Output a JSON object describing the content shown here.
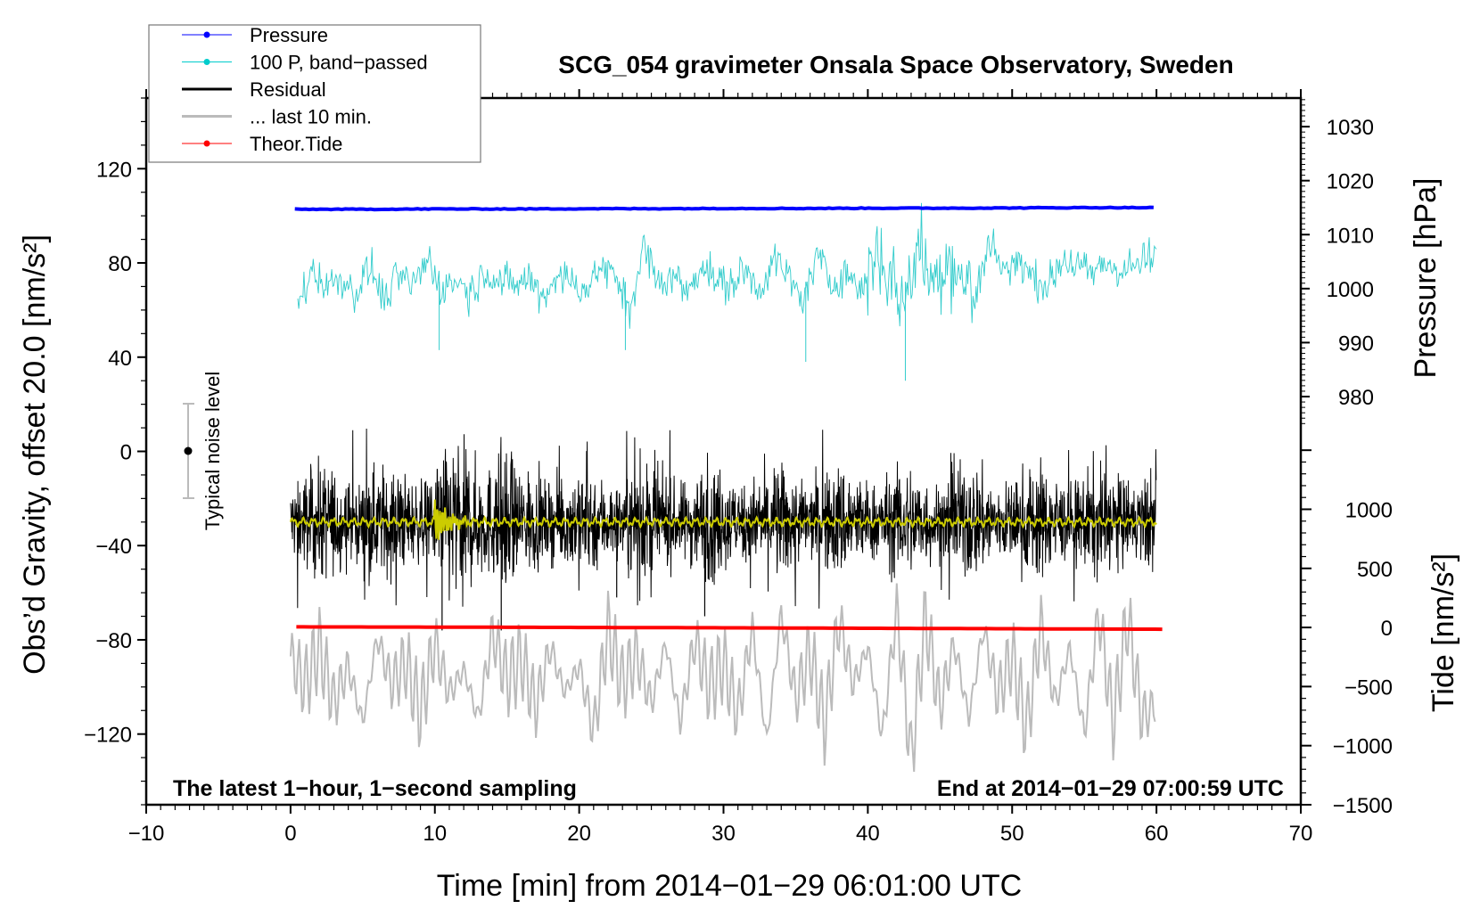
{
  "chart_data": {
    "type": "line",
    "title": "SCG_054 gravimeter Onsala Space Observatory, Sweden",
    "xlabel": "Time [min] from 2014−01−29 06:01:00 UTC",
    "ylabel_left": "Obs’d Gravity, offset 20.0 [nm/s²]",
    "ylabel_right_pressure": "Pressure [hPa]",
    "ylabel_right_tide": "Tide [nm/s²]",
    "xlim": [
      -10,
      70
    ],
    "ylim_left": [
      -150,
      150
    ],
    "ylim_pressure": [
      904.4,
      1035.3
    ],
    "ylim_tide": [
      -1500,
      4480
    ],
    "x_ticks": [
      "−10",
      "0",
      "10",
      "20",
      "30",
      "40",
      "50",
      "60",
      "70"
    ],
    "x_tick_values": [
      -10,
      0,
      10,
      20,
      30,
      40,
      50,
      60,
      70
    ],
    "y_left_ticks": [
      "120",
      "80",
      "40",
      "0",
      "−40",
      "−80",
      "−120"
    ],
    "y_left_tick_values": [
      120,
      80,
      40,
      0,
      -40,
      -80,
      -120
    ],
    "pressure_ticks": [
      "1030",
      "1020",
      "1010",
      "1000",
      "990",
      "980"
    ],
    "pressure_tick_values": [
      1030,
      1020,
      1010,
      1000,
      990,
      980
    ],
    "tide_ticks": [
      "1000",
      "500",
      "0",
      "−500",
      "−1000",
      "−1500"
    ],
    "tide_tick_values": [
      1000,
      500,
      0,
      -500,
      -1000,
      -1500
    ],
    "annotations": {
      "bottom_left": "The latest 1−hour, 1−second sampling",
      "bottom_right": "End at 2014−01−29 07:00:59 UTC",
      "noise_label": "Typical noise level",
      "noise_level": {
        "center": 0,
        "range": [
          -20,
          20
        ]
      }
    },
    "legend": {
      "placement": "top-left",
      "entries": [
        {
          "label": "Pressure",
          "color": "#0000ff",
          "marker": true
        },
        {
          "label": "100 P, band−passed",
          "color": "#00cccc",
          "marker": true
        },
        {
          "label": "Residual",
          "color": "#000000",
          "marker": false
        },
        {
          "label": "... last 10 min.",
          "color": "#bbbbbb",
          "marker": false
        },
        {
          "label": "Theor.Tide",
          "color": "#ff0000",
          "marker": true
        }
      ]
    },
    "series": [
      {
        "name": "Pressure",
        "axis": "pressure",
        "color": "#0000ff",
        "x_step_min": 5,
        "x_start": 0.3,
        "values": [
          1014.7,
          1014.7,
          1014.75,
          1014.75,
          1014.8,
          1014.8,
          1014.85,
          1014.85,
          1014.9,
          1014.9,
          1014.95,
          1015.0,
          1015.0
        ]
      },
      {
        "name": "100 P, band-passed",
        "axis": "left",
        "color": "#33cccc",
        "x_step_min": 1,
        "x_start": 0.5,
        "values": [
          60,
          78,
          70,
          74,
          66,
          80,
          62,
          75,
          70,
          84,
          68,
          73,
          66,
          78,
          72,
          70,
          74,
          64,
          76,
          72,
          68,
          80,
          74,
          58,
          90,
          70,
          76,
          66,
          82,
          72,
          70,
          78,
          68,
          84,
          74,
          62,
          86,
          70,
          78,
          66,
          88,
          76,
          60,
          92,
          70,
          86,
          74,
          64,
          94,
          78,
          82,
          74,
          70,
          84,
          80,
          76,
          82,
          78,
          80,
          84,
          86
        ]
      },
      {
        "name": "Residual",
        "axis": "left",
        "color": "#000000",
        "mean": -30,
        "typical_range": [
          -55,
          -5
        ],
        "min": -76,
        "max": 12
      },
      {
        "name": "Residual smoothed",
        "axis": "left",
        "color": "#cccc00",
        "mean": -30,
        "burst_window": [
          10,
          12.5
        ],
        "burst_amplitude": 9
      },
      {
        "name": "... last 10 min.",
        "axis": "left",
        "color": "#bbbbbb",
        "x_step_min": 1,
        "x_start": 0,
        "values": [
          -85,
          -100,
          -80,
          -110,
          -90,
          -120,
          -75,
          -100,
          -88,
          -115,
          -78,
          -105,
          -92,
          -118,
          -72,
          -98,
          -86,
          -112,
          -80,
          -104,
          -90,
          -125,
          -70,
          -100,
          -84,
          -110,
          -78,
          -120,
          -76,
          -102,
          -88,
          -116,
          -70,
          -130,
          -62,
          -108,
          -82,
          -122,
          -66,
          -100,
          -80,
          -128,
          -60,
          -140,
          -64,
          -112,
          -78,
          -118,
          -70,
          -106,
          -84,
          -124,
          -68,
          -110,
          -80,
          -126,
          -62,
          -120,
          -64,
          -118,
          -110
        ]
      },
      {
        "name": "Theor.Tide",
        "axis": "tide",
        "color": "#ff0000",
        "x_step_min": 10,
        "x_start": 0.4,
        "values": [
          5,
          3,
          0,
          -3,
          -7,
          -11,
          -15
        ]
      }
    ]
  }
}
